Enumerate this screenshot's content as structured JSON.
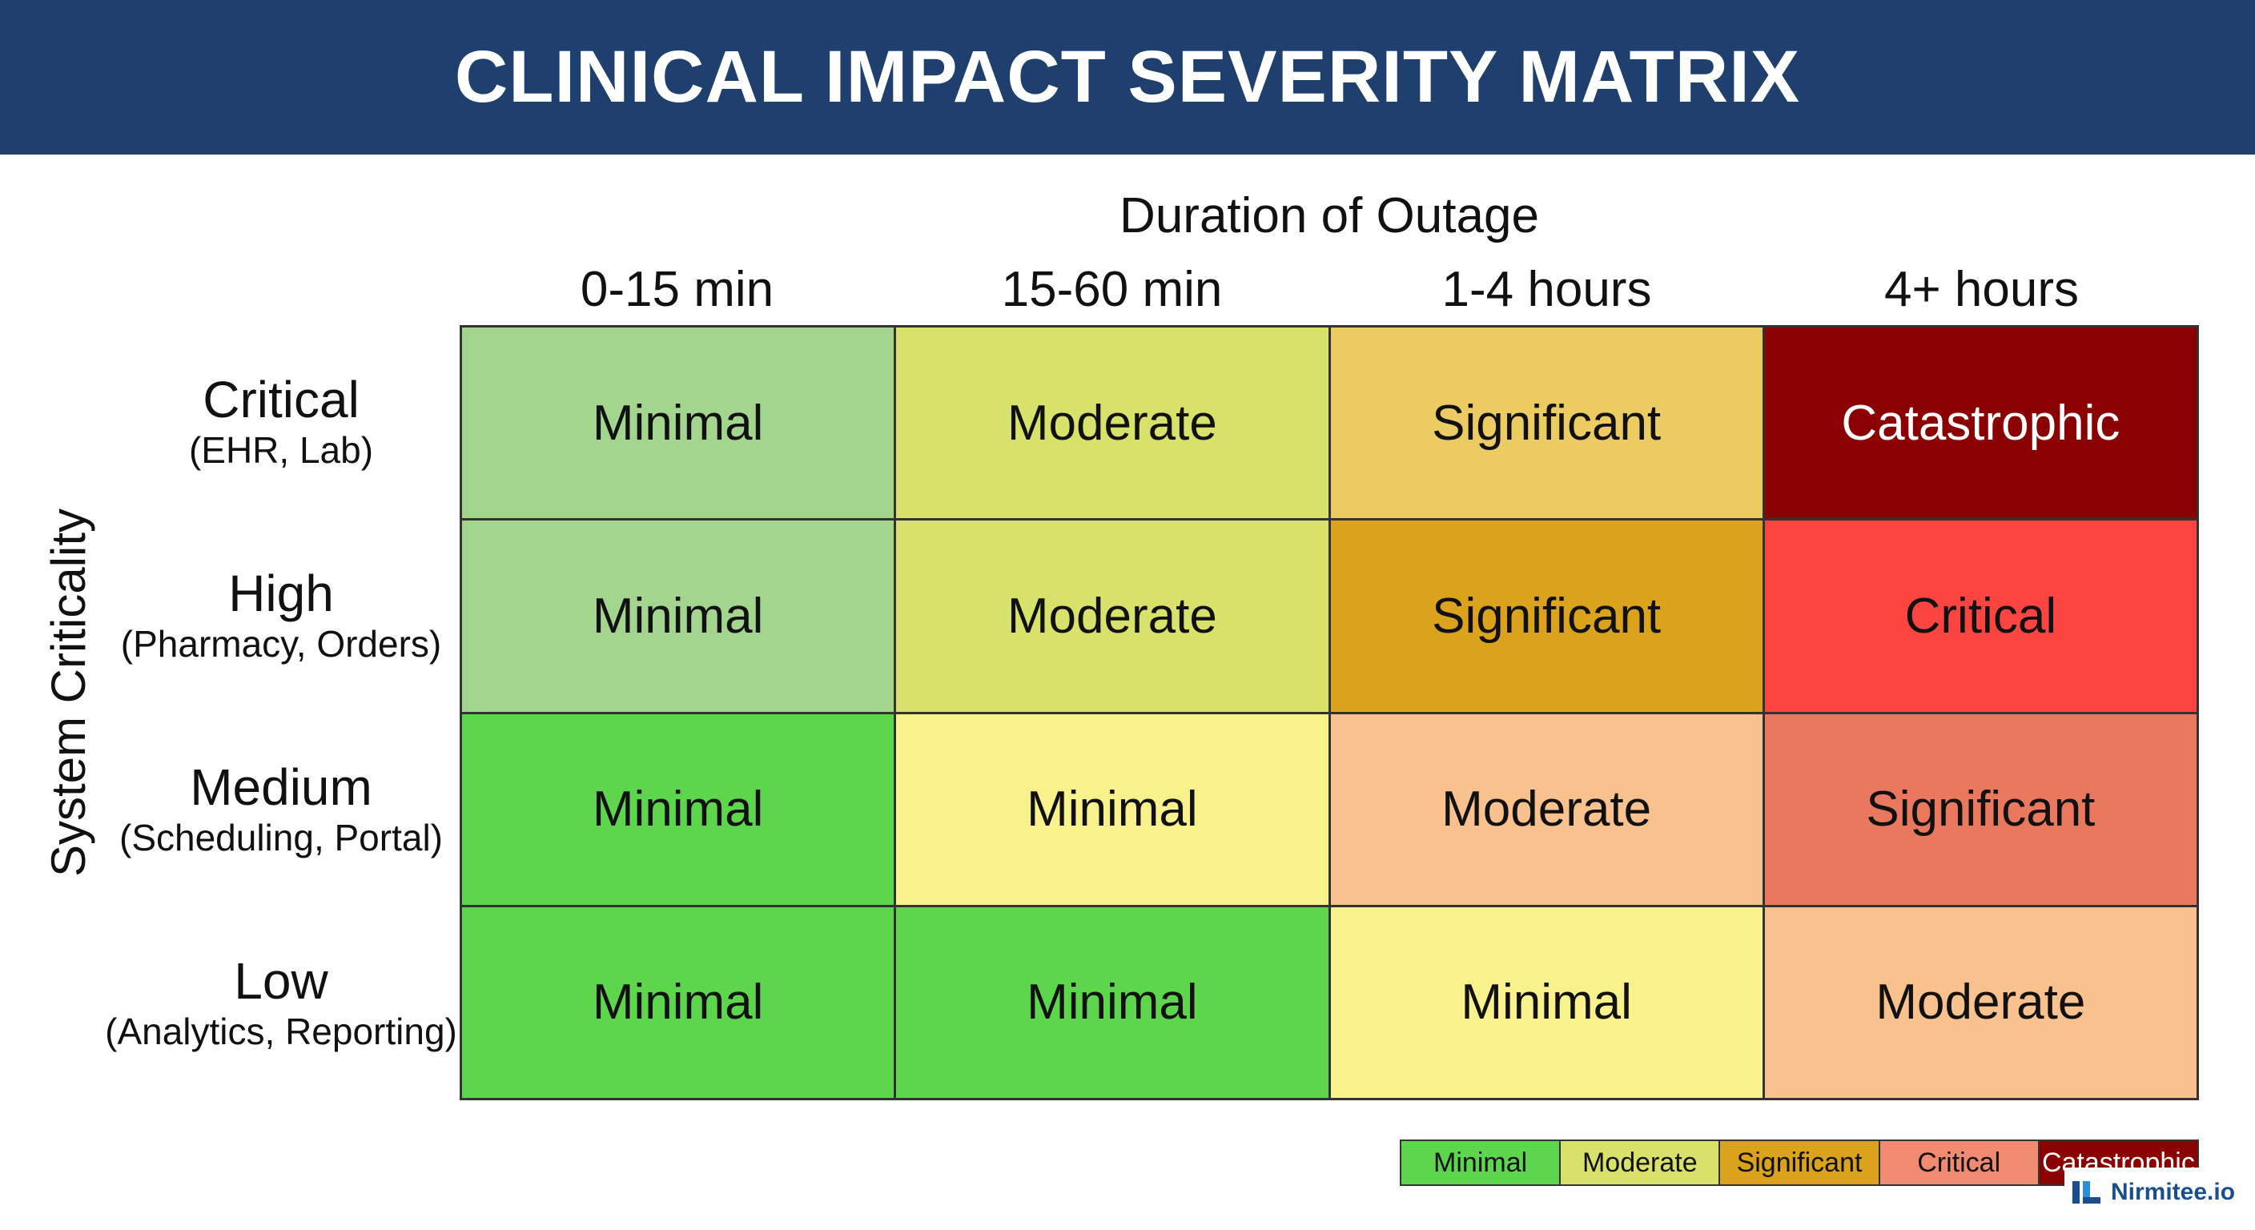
{
  "title": "CLINICAL IMPACT SEVERITY MATRIX",
  "x_axis_title": "Duration of Outage",
  "y_axis_title": "System Criticality",
  "columns": [
    "0-15 min",
    "15-60 min",
    "1-4 hours",
    "4+ hours"
  ],
  "rows": [
    {
      "name": "Critical",
      "examples": "(EHR, Lab)"
    },
    {
      "name": "High",
      "examples": "(Pharmacy, Orders)"
    },
    {
      "name": "Medium",
      "examples": "(Scheduling, Portal)"
    },
    {
      "name": "Low",
      "examples": "(Analytics, Reporting)"
    }
  ],
  "cells": [
    [
      {
        "label": "Minimal",
        "bg": "#a3d58f",
        "fg": "#111111"
      },
      {
        "label": "Moderate",
        "bg": "#d8e16a",
        "fg": "#111111"
      },
      {
        "label": "Significant",
        "bg": "#eccb63",
        "fg": "#111111"
      },
      {
        "label": "Catastrophic",
        "bg": "#8b0000",
        "fg": "#ffffff"
      }
    ],
    [
      {
        "label": "Minimal",
        "bg": "#a3d58f",
        "fg": "#111111"
      },
      {
        "label": "Moderate",
        "bg": "#d8e16a",
        "fg": "#111111"
      },
      {
        "label": "Significant",
        "bg": "#dba21b",
        "fg": "#111111"
      },
      {
        "label": "Critical",
        "bg": "#fc4440",
        "fg": "#111111"
      }
    ],
    [
      {
        "label": "Minimal",
        "bg": "#5dd64e",
        "fg": "#111111"
      },
      {
        "label": "Minimal",
        "bg": "#f8f18c",
        "fg": "#111111"
      },
      {
        "label": "Moderate",
        "bg": "#f8c18e",
        "fg": "#111111"
      },
      {
        "label": "Significant",
        "bg": "#ea785e",
        "fg": "#111111"
      }
    ],
    [
      {
        "label": "Minimal",
        "bg": "#5dd64e",
        "fg": "#111111"
      },
      {
        "label": "Minimal",
        "bg": "#5dd64e",
        "fg": "#111111"
      },
      {
        "label": "Minimal",
        "bg": "#f8f18c",
        "fg": "#111111"
      },
      {
        "label": "Moderate",
        "bg": "#f8c18e",
        "fg": "#111111"
      }
    ]
  ],
  "legend": [
    {
      "label": "Minimal",
      "bg": "#5dd64e",
      "fg": "#111111"
    },
    {
      "label": "Moderate",
      "bg": "#d8e16a",
      "fg": "#111111"
    },
    {
      "label": "Significant",
      "bg": "#dba21b",
      "fg": "#111111"
    },
    {
      "label": "Critical",
      "bg": "#f08a70",
      "fg": "#111111"
    },
    {
      "label": "Catastrophic",
      "bg": "#8b0000",
      "fg": "#ffffff"
    }
  ],
  "brand": {
    "name": "Nirmitee.io",
    "icon": "nirmitee-logo-icon",
    "color": "#1a4f8f"
  },
  "colors": {
    "header_bg": "#1f406e",
    "grid_line": "#333333"
  }
}
